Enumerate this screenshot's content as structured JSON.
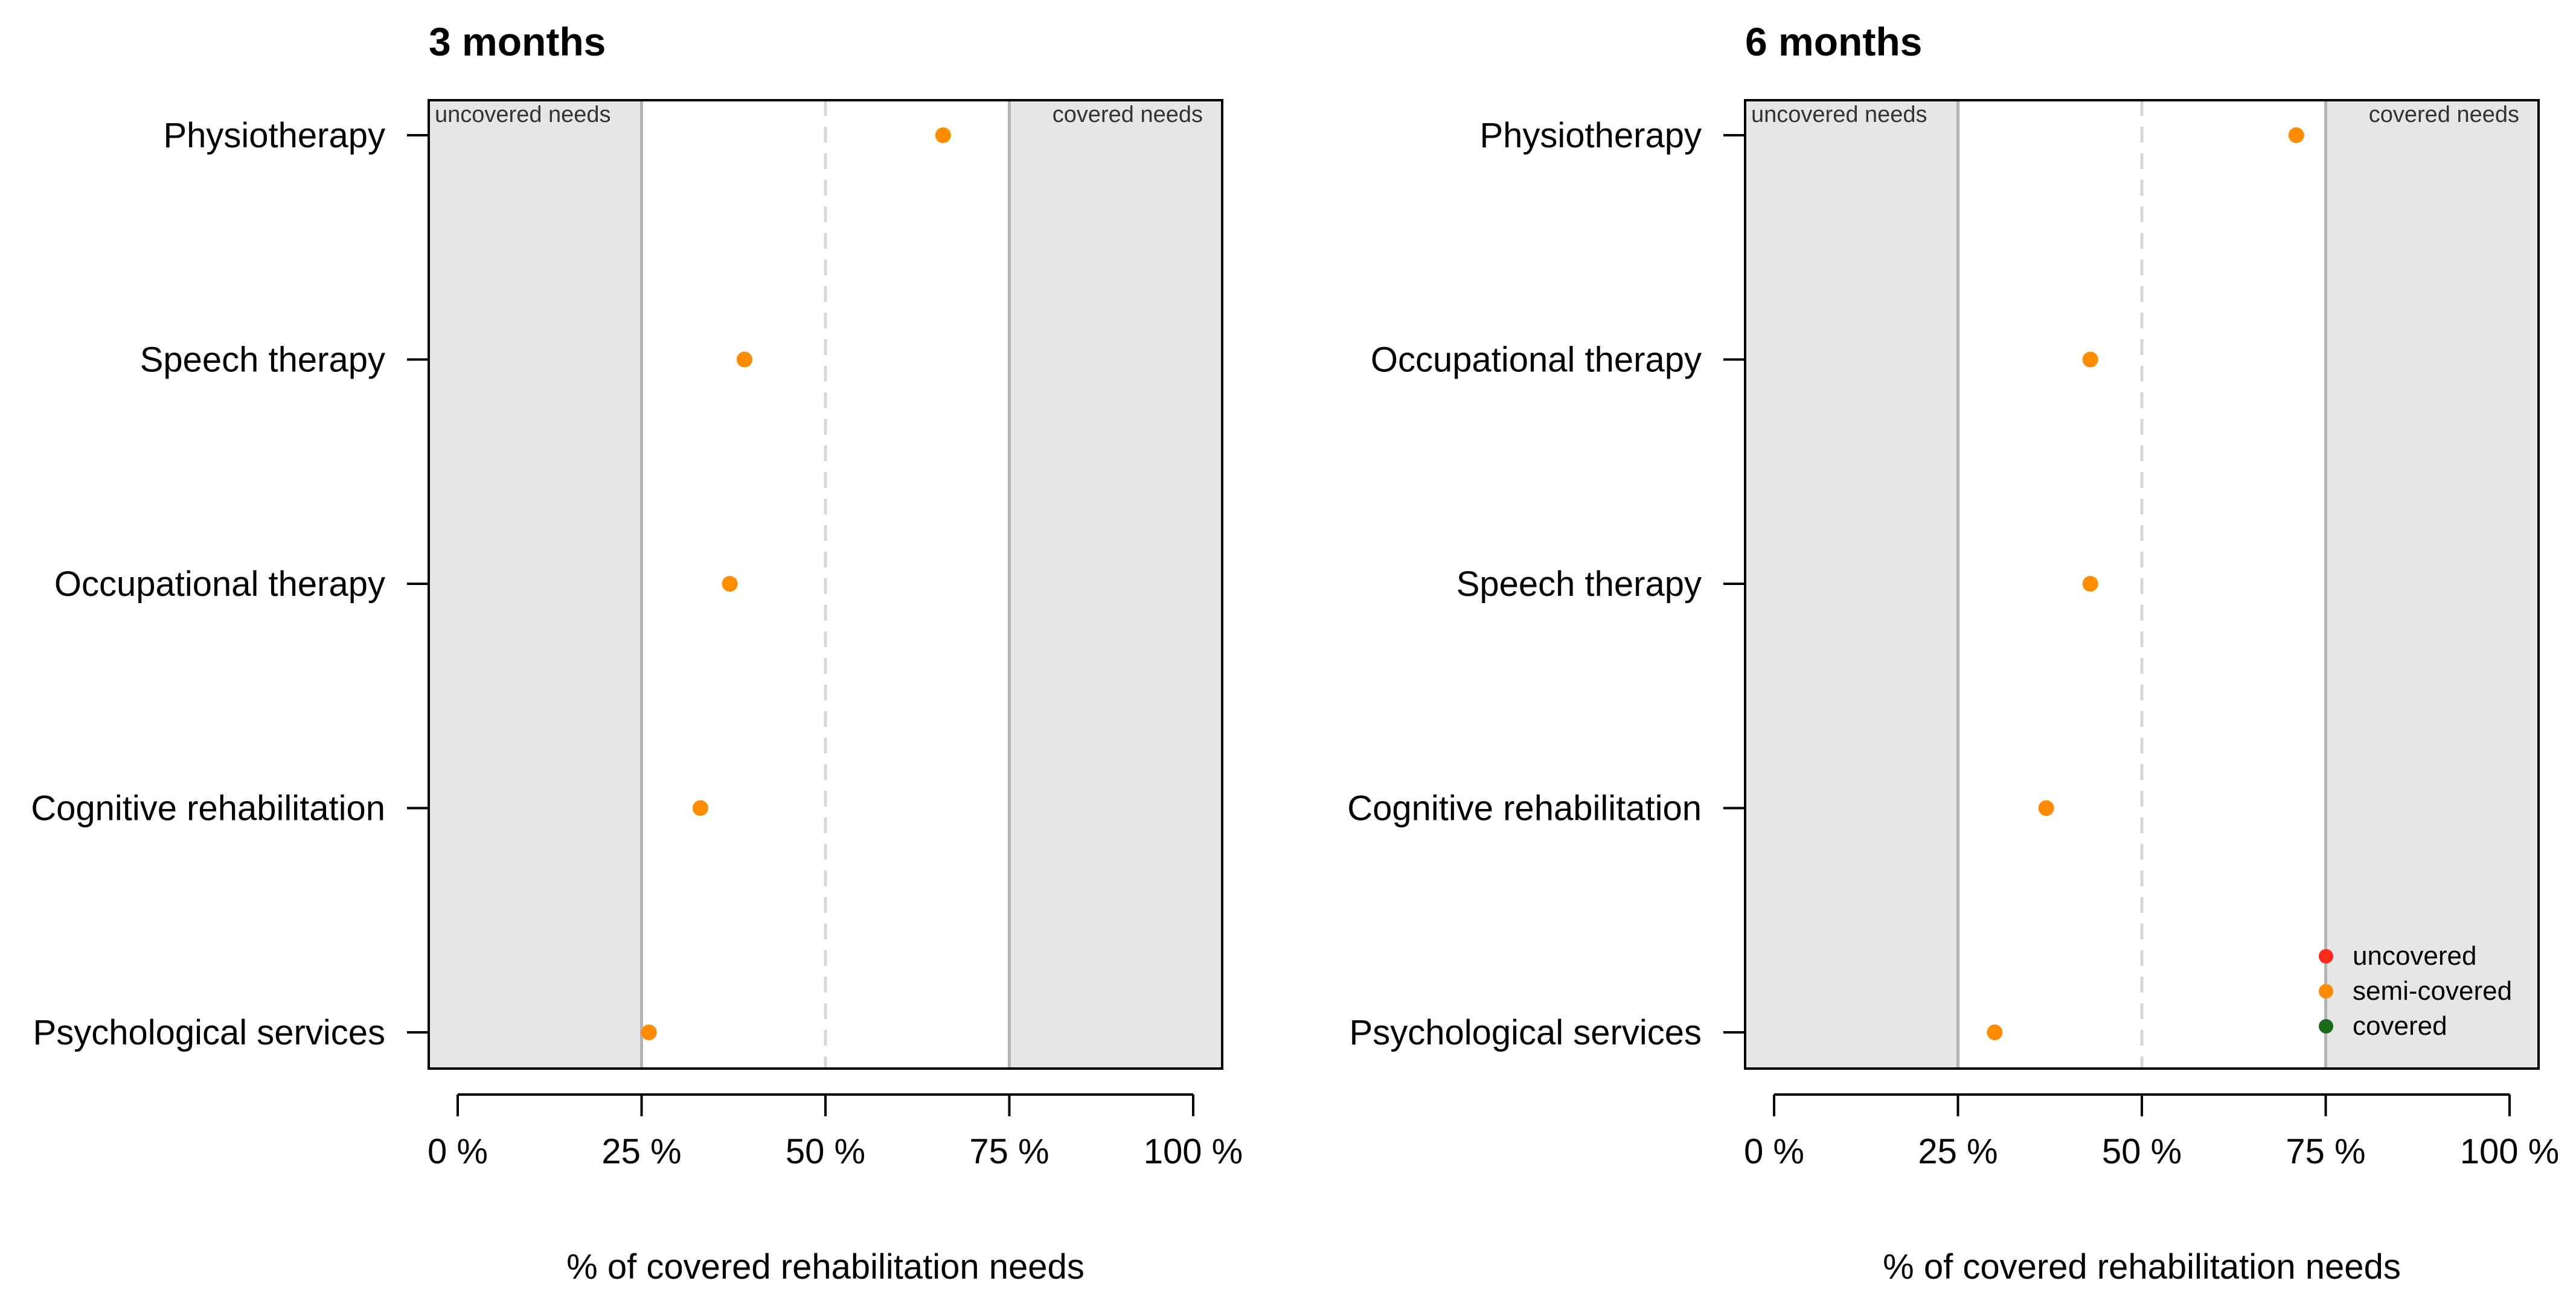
{
  "chart_data": [
    {
      "type": "scatter",
      "title": "3 months",
      "xlabel": "% of covered rehabilitation needs",
      "ylabel": "",
      "xlim": [
        0,
        100
      ],
      "xticks": [
        0,
        25,
        50,
        75,
        100
      ],
      "xtick_labels": [
        "0 %",
        "25 %",
        "50 %",
        "75 %",
        "100 %"
      ],
      "reference_lines": {
        "solid": [
          25,
          75
        ],
        "dashed": [
          50
        ]
      },
      "shaded_regions": [
        {
          "from": 0,
          "to": 25,
          "label": "uncovered needs"
        },
        {
          "from": 75,
          "to": 100,
          "label": "covered needs"
        }
      ],
      "categories": [
        "Physiotherapy",
        "Speech therapy",
        "Occupational therapy",
        "Cognitive rehabilitation",
        "Psychological services"
      ],
      "values": [
        66,
        39,
        37,
        33,
        26
      ],
      "point_status": [
        "semi-covered",
        "semi-covered",
        "semi-covered",
        "semi-covered",
        "semi-covered"
      ],
      "legend": null
    },
    {
      "type": "scatter",
      "title": "6 months",
      "xlabel": "% of covered rehabilitation needs",
      "ylabel": "",
      "xlim": [
        0,
        100
      ],
      "xticks": [
        0,
        25,
        50,
        75,
        100
      ],
      "xtick_labels": [
        "0 %",
        "25 %",
        "50 %",
        "75 %",
        "100 %"
      ],
      "reference_lines": {
        "solid": [
          25,
          75
        ],
        "dashed": [
          50
        ]
      },
      "shaded_regions": [
        {
          "from": 0,
          "to": 25,
          "label": "uncovered needs"
        },
        {
          "from": 75,
          "to": 100,
          "label": "covered needs"
        }
      ],
      "categories": [
        "Physiotherapy",
        "Occupational therapy",
        "Speech therapy",
        "Cognitive rehabilitation",
        "Psychological services"
      ],
      "values": [
        71,
        43,
        43,
        37,
        30
      ],
      "point_status": [
        "semi-covered",
        "semi-covered",
        "semi-covered",
        "semi-covered",
        "semi-covered"
      ],
      "legend": {
        "placement": "bottom-right",
        "items": [
          {
            "label": "uncovered",
            "color": "#ff2a1a"
          },
          {
            "label": "semi-covered",
            "color": "#ff8c00"
          },
          {
            "label": "covered",
            "color": "#1a6b1a"
          }
        ]
      }
    }
  ],
  "colors": {
    "uncovered": "#ff2a1a",
    "semi-covered": "#ff8c00",
    "covered": "#1a6b1a",
    "shade": "#e6e6e6",
    "solid_line": "#b3b3b3",
    "dashed_line": "#d6d6d6"
  }
}
